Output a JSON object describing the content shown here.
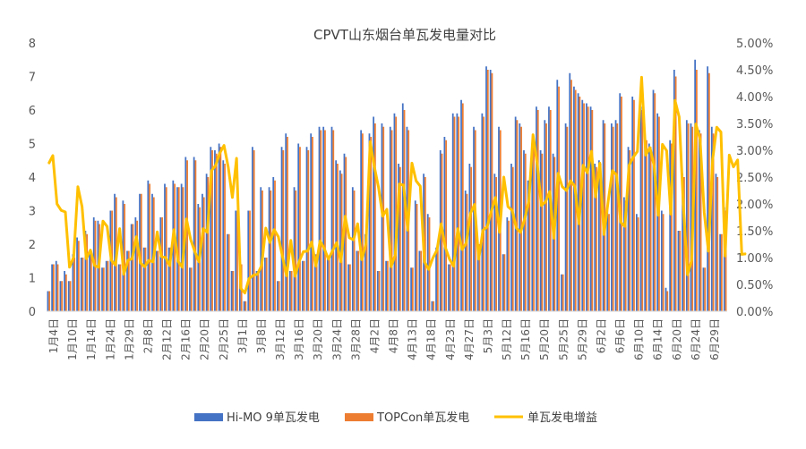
{
  "chart_data": {
    "type": "bar+line",
    "title": "CPVT山东烟台单瓦发电量对比",
    "legend_position": "bottom",
    "grid": false,
    "y_left": {
      "min": 0,
      "max": 8,
      "step": 1,
      "ticks": [
        "0",
        "1",
        "2",
        "3",
        "4",
        "5",
        "6",
        "7",
        "8"
      ]
    },
    "y_right": {
      "min": 0,
      "max": 0.05,
      "step": 0.005,
      "ticks": [
        "0.00%",
        "0.50%",
        "1.00%",
        "1.50%",
        "2.00%",
        "2.50%",
        "3.00%",
        "3.50%",
        "4.00%",
        "4.50%",
        "5.00%"
      ]
    },
    "x_labels": [
      "1月4日",
      "1月10日",
      "1月14日",
      "1月24日",
      "1月29日",
      "2月8日",
      "2月12日",
      "2月16日",
      "2月20日",
      "2月25日",
      "3月1日",
      "3月8日",
      "3月12日",
      "3月16日",
      "3月20日",
      "3月24日",
      "3月28日",
      "4月2日",
      "4月8日",
      "4月13日",
      "4月18日",
      "4月23日",
      "4月27日",
      "5月3日",
      "5月12日",
      "5月16日",
      "5月20日",
      "5月25日",
      "5月29日",
      "6月2日",
      "6月6日",
      "6月10日",
      "6月14日",
      "6月20日",
      "6月24日",
      "6月29日"
    ],
    "series": [
      {
        "name": "Hi-MO 9单瓦发电",
        "type": "bar",
        "axis": "left",
        "color": "#4472C4",
        "values": [
          0.6,
          1.4,
          1.5,
          0.9,
          1.2,
          0.9,
          1.7,
          2.2,
          1.6,
          2.4,
          1.8,
          2.8,
          2.7,
          1.3,
          1.5,
          3.0,
          3.5,
          1.4,
          3.3,
          1.8,
          2.6,
          2.8,
          3.5,
          1.9,
          3.9,
          3.5,
          1.8,
          2.8,
          3.8,
          1.9,
          3.9,
          3.7,
          3.8,
          4.6,
          1.3,
          4.6,
          3.2,
          3.5,
          4.1,
          4.9,
          4.8,
          5.0,
          4.5,
          2.3,
          1.2,
          3.0,
          1.4,
          0.3,
          3.0,
          4.9,
          1.2,
          3.7,
          1.6,
          3.7,
          4.0,
          0.9,
          4.9,
          5.3,
          1.2,
          3.7,
          5.0,
          1.5,
          4.9,
          5.3,
          1.7,
          5.5,
          5.5,
          1.6,
          5.5,
          4.5,
          4.2,
          4.7,
          1.4,
          3.7,
          1.8,
          5.4,
          2.3,
          5.3,
          5.8,
          1.2,
          5.6,
          1.5,
          5.5,
          5.9,
          4.4,
          6.2,
          5.5,
          1.3,
          3.3,
          1.8,
          4.1,
          2.9,
          0.3,
          1.9,
          4.8,
          5.2,
          1.4,
          5.9,
          5.9,
          6.3,
          3.6,
          4.4,
          5.5,
          2.0,
          5.9,
          7.3,
          7.2,
          4.1,
          5.5,
          1.7,
          2.8,
          4.4,
          5.8,
          5.6,
          4.8,
          3.9,
          5.0,
          6.1,
          4.8,
          5.7,
          6.1,
          4.7,
          6.9,
          1.1,
          5.6,
          7.1,
          6.7,
          6.5,
          6.3,
          6.2,
          6.1,
          4.4,
          4.5,
          5.7,
          3.0,
          5.6,
          5.7,
          6.5,
          3.4,
          4.9,
          6.4,
          2.9,
          6.1,
          5.2,
          5.0,
          6.6,
          5.9,
          3.0,
          0.7,
          5.1,
          7.2,
          2.4,
          4.1,
          5.7,
          5.6,
          7.5,
          5.4,
          1.3,
          7.3,
          5.5,
          4.1,
          2.3,
          3.1
        ]
      },
      {
        "name": "TOPCon单瓦发电",
        "type": "bar",
        "axis": "left",
        "color": "#ED7D31",
        "values": [
          0.6,
          1.4,
          1.4,
          0.9,
          1.1,
          0.9,
          1.6,
          2.1,
          1.6,
          2.3,
          1.7,
          2.7,
          2.6,
          1.3,
          1.5,
          3.0,
          3.4,
          1.4,
          3.2,
          1.8,
          2.6,
          2.7,
          3.5,
          1.9,
          3.8,
          3.4,
          1.8,
          2.8,
          3.7,
          1.9,
          3.8,
          3.7,
          3.7,
          4.5,
          1.3,
          4.5,
          3.1,
          3.4,
          4.0,
          4.8,
          4.7,
          4.9,
          4.4,
          2.3,
          1.2,
          3.0,
          1.4,
          0.3,
          3.0,
          4.8,
          1.2,
          3.6,
          1.6,
          3.6,
          3.9,
          0.9,
          4.8,
          5.2,
          1.2,
          3.6,
          4.9,
          1.5,
          4.8,
          5.2,
          1.7,
          5.4,
          5.4,
          1.6,
          5.4,
          4.4,
          4.1,
          4.6,
          1.4,
          3.6,
          1.8,
          5.3,
          2.2,
          5.2,
          5.6,
          1.2,
          5.5,
          1.5,
          5.4,
          5.8,
          4.3,
          6.0,
          5.4,
          1.3,
          3.2,
          1.8,
          4.0,
          2.8,
          0.3,
          1.9,
          4.7,
          5.1,
          1.4,
          5.8,
          5.8,
          6.2,
          3.5,
          4.3,
          5.4,
          2.0,
          5.8,
          7.2,
          7.1,
          4.0,
          5.4,
          1.7,
          2.7,
          4.3,
          5.7,
          5.5,
          4.7,
          3.8,
          4.9,
          6.0,
          4.7,
          5.6,
          6.0,
          4.6,
          6.7,
          1.1,
          5.5,
          6.9,
          6.6,
          6.4,
          6.2,
          6.1,
          6.0,
          4.3,
          4.4,
          5.6,
          2.9,
          5.5,
          5.6,
          6.4,
          3.3,
          4.8,
          6.3,
          2.8,
          6.0,
          5.1,
          4.9,
          6.5,
          5.8,
          2.9,
          0.6,
          5.0,
          7.0,
          2.4,
          4.0,
          5.6,
          5.5,
          7.2,
          5.3,
          1.3,
          7.1,
          5.3,
          4.0,
          2.3,
          3.0
        ]
      },
      {
        "name": "单瓦发电增益",
        "type": "line",
        "axis": "right",
        "color": "#FFC000",
        "values": [
          0.0275,
          0.029,
          0.02,
          0.0188,
          0.0185,
          0.0082,
          0.0101,
          0.0232,
          0.0195,
          0.0098,
          0.0114,
          0.0085,
          0.0082,
          0.0168,
          0.0158,
          0.0095,
          0.0086,
          0.0154,
          0.0069,
          0.0095,
          0.0098,
          0.0139,
          0.009,
          0.0083,
          0.0095,
          0.0092,
          0.0148,
          0.0102,
          0.01,
          0.0085,
          0.0152,
          0.0093,
          0.0082,
          0.0172,
          0.0134,
          0.0111,
          0.0092,
          0.0154,
          0.0147,
          0.0262,
          0.0272,
          0.0295,
          0.0309,
          0.0269,
          0.0212,
          0.0285,
          0.0043,
          0.0034,
          0.0061,
          0.0067,
          0.0069,
          0.0085,
          0.0155,
          0.0128,
          0.0152,
          0.0139,
          0.0102,
          0.0066,
          0.0132,
          0.0065,
          0.0093,
          0.0111,
          0.0112,
          0.0129,
          0.0084,
          0.0131,
          0.0117,
          0.0097,
          0.0113,
          0.0128,
          0.0092,
          0.0177,
          0.0137,
          0.0133,
          0.0163,
          0.0096,
          0.0126,
          0.0316,
          0.0269,
          0.0231,
          0.0177,
          0.019,
          0.0083,
          0.0105,
          0.0237,
          0.0235,
          0.0151,
          0.0276,
          0.0243,
          0.0233,
          0.0092,
          0.0078,
          0.0099,
          0.0114,
          0.0163,
          0.0119,
          0.0097,
          0.0084,
          0.0154,
          0.0115,
          0.0127,
          0.0182,
          0.0199,
          0.0097,
          0.0151,
          0.0157,
          0.0186,
          0.0212,
          0.0147,
          0.025,
          0.0195,
          0.0188,
          0.0155,
          0.0147,
          0.0172,
          0.0205,
          0.0329,
          0.0275,
          0.0197,
          0.0204,
          0.0223,
          0.0136,
          0.0257,
          0.0232,
          0.0225,
          0.0243,
          0.0233,
          0.0163,
          0.0272,
          0.0258,
          0.0298,
          0.0213,
          0.0276,
          0.0143,
          0.0205,
          0.0262,
          0.0254,
          0.0166,
          0.0158,
          0.0272,
          0.0287,
          0.0298,
          0.0436,
          0.0291,
          0.0305,
          0.0271,
          0.0179,
          0.0311,
          0.0299,
          0.0181,
          0.0393,
          0.0362,
          0.0198,
          0.0068,
          0.0095,
          0.0349,
          0.0321,
          0.0184,
          0.0112,
          0.0282,
          0.0343,
          0.0334,
          0.0103,
          0.0291,
          0.0269,
          0.0282,
          0.0106,
          0.0107
        ]
      }
    ]
  }
}
